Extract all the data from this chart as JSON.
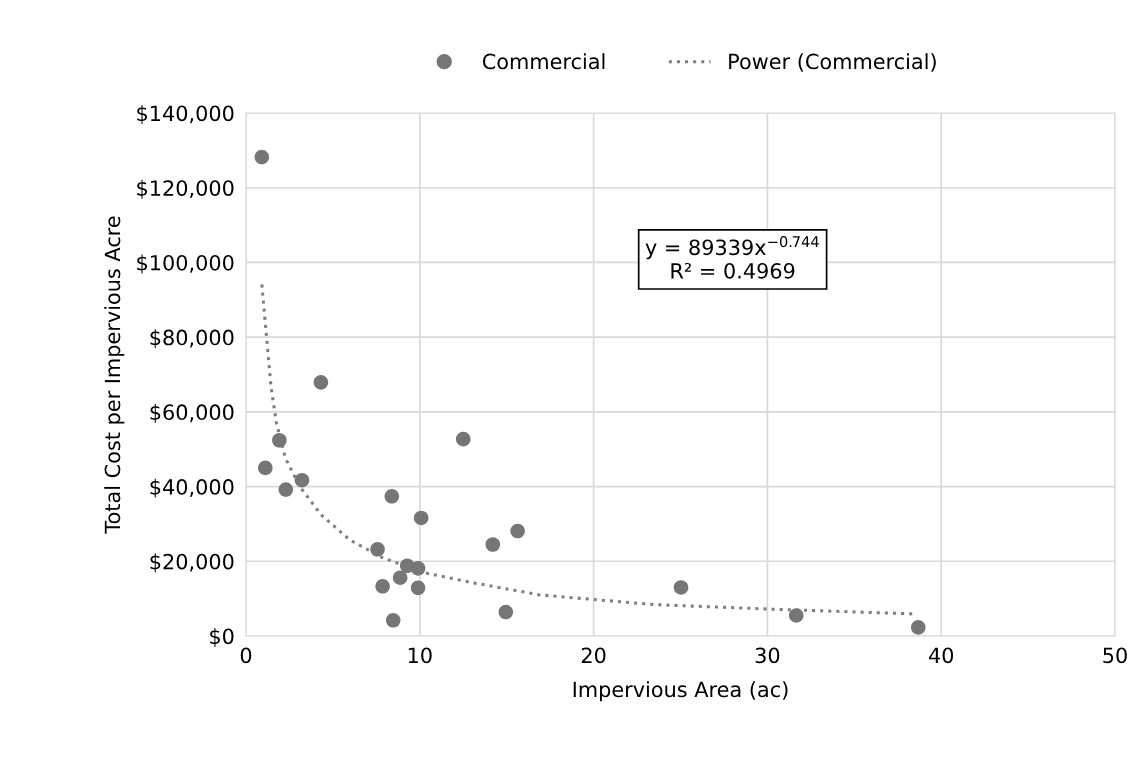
{
  "chart_data": {
    "type": "scatter",
    "xlabel": "Impervious Area (ac)",
    "ylabel": "Total Cost per Impervious Acre",
    "series": [
      {
        "name": "Commercial",
        "color": "#767676",
        "marker": "circle",
        "x": [
          0.91,
          1.92,
          1.11,
          3.22,
          2.29,
          4.31,
          12.5,
          8.39,
          10.08,
          15.63,
          14.2,
          7.57,
          9.28,
          9.9,
          8.87,
          7.86,
          9.9,
          14.95,
          8.47,
          25.03,
          31.66,
          38.68
        ],
        "values": [
          128200,
          52400,
          45000,
          41700,
          39200,
          67900,
          52700,
          37400,
          31600,
          28100,
          24500,
          23200,
          18800,
          18100,
          15600,
          13300,
          12900,
          6400,
          4200,
          13000,
          5500,
          2300
        ]
      },
      {
        "name": "Power (Commercial)",
        "type": "line",
        "color": "#7f7f7f",
        "line_style": "dotted",
        "marker": "none",
        "x": [
          0.91,
          1.44,
          1.75,
          2.27,
          3.09,
          4.33,
          5.98,
          7.84,
          10.1,
          13.0,
          16.9,
          23.5,
          30.15,
          38.5
        ],
        "values": [
          94100,
          66700,
          57000,
          47600,
          40000,
          32400,
          25700,
          21000,
          17100,
          14300,
          11000,
          8400,
          7200,
          5900
        ]
      }
    ],
    "xlim": [
      0,
      50
    ],
    "xticks": [
      0,
      10,
      20,
      30,
      40,
      50
    ],
    "ylim": [
      0,
      140000
    ],
    "yticks": [
      {
        "value": 0,
        "label": "$0"
      },
      {
        "value": 20000,
        "label": "$20,000"
      },
      {
        "value": 40000,
        "label": "$40,000"
      },
      {
        "value": 60000,
        "label": "$60,000"
      },
      {
        "value": 80000,
        "label": "$80,000"
      },
      {
        "value": 100000,
        "label": "$100,000"
      },
      {
        "value": 120000,
        "label": "$120,000"
      },
      {
        "value": 140000,
        "label": "$140,000"
      }
    ],
    "annotations": [
      "y = 89339x$^{−0.744}$\nR² = 0.4969"
    ],
    "grid": true,
    "legend": "top"
  }
}
